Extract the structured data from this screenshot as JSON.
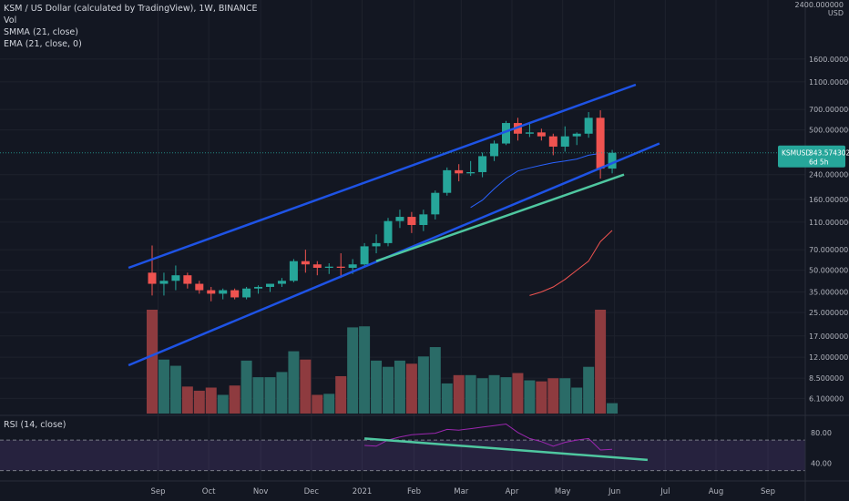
{
  "header": {
    "title": "KSM / US Dollar (calculated by TradingView), 1W, BINANCE",
    "indicators": [
      "Vol",
      "SMMA (21, close)",
      "EMA (21, close, 0)"
    ]
  },
  "rsi_pane": {
    "label": "RSI (14, close)",
    "ticks": [
      "80.00",
      "40.00"
    ]
  },
  "price_tag": {
    "symbol": "KSMUSD",
    "price": "343.574302",
    "countdown": "6d 5h"
  },
  "price_axis": {
    "top_label": "2400.000000",
    "currency": "USD",
    "ticks": [
      {
        "v": 1600,
        "label": "1600.000000"
      },
      {
        "v": 1100,
        "label": "1100.000000"
      },
      {
        "v": 700,
        "label": "700.000000"
      },
      {
        "v": 500,
        "label": "500.000000"
      },
      {
        "v": 240,
        "label": "240.000000"
      },
      {
        "v": 160,
        "label": "160.000000"
      },
      {
        "v": 110,
        "label": "110.000000"
      },
      {
        "v": 70,
        "label": "70.000000"
      },
      {
        "v": 50,
        "label": "50.000000"
      },
      {
        "v": 35,
        "label": "35.000000"
      },
      {
        "v": 25,
        "label": "25.000000"
      },
      {
        "v": 17,
        "label": "17.000000"
      },
      {
        "v": 12,
        "label": "12.000000"
      },
      {
        "v": 8.5,
        "label": "8.500000"
      },
      {
        "v": 6.1,
        "label": "6.100000"
      }
    ]
  },
  "colors": {
    "background": "#131722",
    "up": "#26a69a",
    "down": "#ef5350",
    "vol_up": "#2a6b67",
    "vol_down": "#8e3b3f",
    "smma": "#ef5350",
    "ema": "#2962ff",
    "channel": "#1e53e5",
    "trend": "#4fc7a0",
    "rsi": "#9c27b0",
    "axis_text": "#b2b5be"
  },
  "chart_data": {
    "type": "candlestick",
    "title": "KSM / US Dollar (calculated by TradingView), 1W, BINANCE",
    "scale": "log",
    "ylim": [
      5.5,
      2400
    ],
    "x_ticks": [
      {
        "i": 0.5,
        "label": "Sep"
      },
      {
        "i": 4.8,
        "label": "Oct"
      },
      {
        "i": 9.2,
        "label": "Nov"
      },
      {
        "i": 13.5,
        "label": "Dec"
      },
      {
        "i": 17.8,
        "label": "2021"
      },
      {
        "i": 22.2,
        "label": "Feb"
      },
      {
        "i": 26.2,
        "label": "Mar"
      },
      {
        "i": 30.5,
        "label": "Apr"
      },
      {
        "i": 34.8,
        "label": "May"
      },
      {
        "i": 39.2,
        "label": "Jun"
      },
      {
        "i": 43.5,
        "label": "Jul"
      },
      {
        "i": 47.8,
        "label": "Aug"
      },
      {
        "i": 52.2,
        "label": "Sep"
      }
    ],
    "candles": [
      {
        "o": 48,
        "h": 75,
        "l": 33,
        "c": 40
      },
      {
        "o": 40,
        "h": 48,
        "l": 33,
        "c": 42
      },
      {
        "o": 42,
        "h": 54,
        "l": 36,
        "c": 46
      },
      {
        "o": 46,
        "h": 48,
        "l": 37,
        "c": 40
      },
      {
        "o": 40,
        "h": 42,
        "l": 34,
        "c": 36
      },
      {
        "o": 36,
        "h": 38,
        "l": 30,
        "c": 34
      },
      {
        "o": 34,
        "h": 37,
        "l": 31,
        "c": 36
      },
      {
        "o": 36,
        "h": 37,
        "l": 31,
        "c": 32
      },
      {
        "o": 32,
        "h": 38,
        "l": 31,
        "c": 37
      },
      {
        "o": 37,
        "h": 39,
        "l": 34,
        "c": 38
      },
      {
        "o": 38,
        "h": 40,
        "l": 35,
        "c": 40
      },
      {
        "o": 40,
        "h": 44,
        "l": 38,
        "c": 42
      },
      {
        "o": 42,
        "h": 60,
        "l": 41,
        "c": 58
      },
      {
        "o": 58,
        "h": 70,
        "l": 48,
        "c": 55
      },
      {
        "o": 55,
        "h": 58,
        "l": 46,
        "c": 52
      },
      {
        "o": 52,
        "h": 56,
        "l": 47,
        "c": 53
      },
      {
        "o": 53,
        "h": 66,
        "l": 44,
        "c": 52
      },
      {
        "o": 52,
        "h": 60,
        "l": 47,
        "c": 55
      },
      {
        "o": 55,
        "h": 78,
        "l": 52,
        "c": 74
      },
      {
        "o": 74,
        "h": 90,
        "l": 66,
        "c": 78
      },
      {
        "o": 78,
        "h": 118,
        "l": 74,
        "c": 112
      },
      {
        "o": 112,
        "h": 135,
        "l": 100,
        "c": 120
      },
      {
        "o": 120,
        "h": 130,
        "l": 92,
        "c": 105
      },
      {
        "o": 105,
        "h": 135,
        "l": 95,
        "c": 125
      },
      {
        "o": 125,
        "h": 185,
        "l": 115,
        "c": 178
      },
      {
        "o": 178,
        "h": 270,
        "l": 170,
        "c": 258
      },
      {
        "o": 258,
        "h": 285,
        "l": 215,
        "c": 245
      },
      {
        "o": 245,
        "h": 300,
        "l": 235,
        "c": 250
      },
      {
        "o": 250,
        "h": 345,
        "l": 230,
        "c": 325
      },
      {
        "o": 325,
        "h": 420,
        "l": 300,
        "c": 400
      },
      {
        "o": 400,
        "h": 580,
        "l": 390,
        "c": 560
      },
      {
        "o": 560,
        "h": 610,
        "l": 420,
        "c": 470
      },
      {
        "o": 470,
        "h": 570,
        "l": 445,
        "c": 480
      },
      {
        "o": 480,
        "h": 510,
        "l": 420,
        "c": 450
      },
      {
        "o": 450,
        "h": 470,
        "l": 330,
        "c": 380
      },
      {
        "o": 380,
        "h": 530,
        "l": 350,
        "c": 450
      },
      {
        "o": 450,
        "h": 480,
        "l": 390,
        "c": 470
      },
      {
        "o": 470,
        "h": 670,
        "l": 440,
        "c": 610
      },
      {
        "o": 610,
        "h": 690,
        "l": 225,
        "c": 265
      },
      {
        "o": 265,
        "h": 360,
        "l": 245,
        "c": 343.57
      }
    ],
    "volume": [
      100,
      52,
      46,
      26,
      22,
      25,
      18,
      27,
      51,
      35,
      35,
      40,
      60,
      52,
      18,
      19,
      36,
      83,
      84,
      51,
      45,
      51,
      48,
      55,
      64,
      29,
      37,
      37,
      34,
      37,
      35,
      39,
      32,
      31,
      34,
      34,
      25,
      45,
      100,
      10
    ],
    "smma": [
      [
        32,
        33
      ],
      [
        33,
        35
      ],
      [
        34,
        38
      ],
      [
        35,
        43
      ],
      [
        36,
        50
      ],
      [
        37,
        58
      ],
      [
        38,
        80
      ],
      [
        39,
        96
      ]
    ],
    "ema": [
      [
        27,
        140
      ],
      [
        28,
        158
      ],
      [
        29,
        190
      ],
      [
        30,
        225
      ],
      [
        31,
        255
      ],
      [
        32,
        268
      ],
      [
        33,
        280
      ],
      [
        34,
        292
      ],
      [
        35,
        300
      ],
      [
        36,
        310
      ],
      [
        37,
        330
      ],
      [
        38,
        340
      ]
    ],
    "channel_upper": [
      [
        -2,
        52
      ],
      [
        41,
        1050
      ]
    ],
    "channel_lower": [
      [
        -2,
        10.5
      ],
      [
        43,
        400
      ]
    ],
    "trendline": [
      [
        19,
        58
      ],
      [
        40,
        240
      ]
    ],
    "rsi": [
      [
        18,
        63
      ],
      [
        19,
        62
      ],
      [
        20,
        70
      ],
      [
        21,
        74
      ],
      [
        22,
        77
      ],
      [
        23,
        78
      ],
      [
        24,
        79
      ],
      [
        25,
        84
      ],
      [
        26,
        83
      ],
      [
        27,
        85
      ],
      [
        28,
        87
      ],
      [
        29,
        89
      ],
      [
        30,
        91
      ],
      [
        31,
        80
      ],
      [
        32,
        72
      ],
      [
        33,
        68
      ],
      [
        34,
        62
      ],
      [
        35,
        67
      ],
      [
        36,
        70
      ],
      [
        37,
        72
      ],
      [
        38,
        57
      ],
      [
        39,
        58
      ]
    ],
    "rsi_ylim": [
      20,
      100
    ],
    "rsi_trendline": [
      [
        18,
        72
      ],
      [
        42,
        44
      ]
    ]
  }
}
